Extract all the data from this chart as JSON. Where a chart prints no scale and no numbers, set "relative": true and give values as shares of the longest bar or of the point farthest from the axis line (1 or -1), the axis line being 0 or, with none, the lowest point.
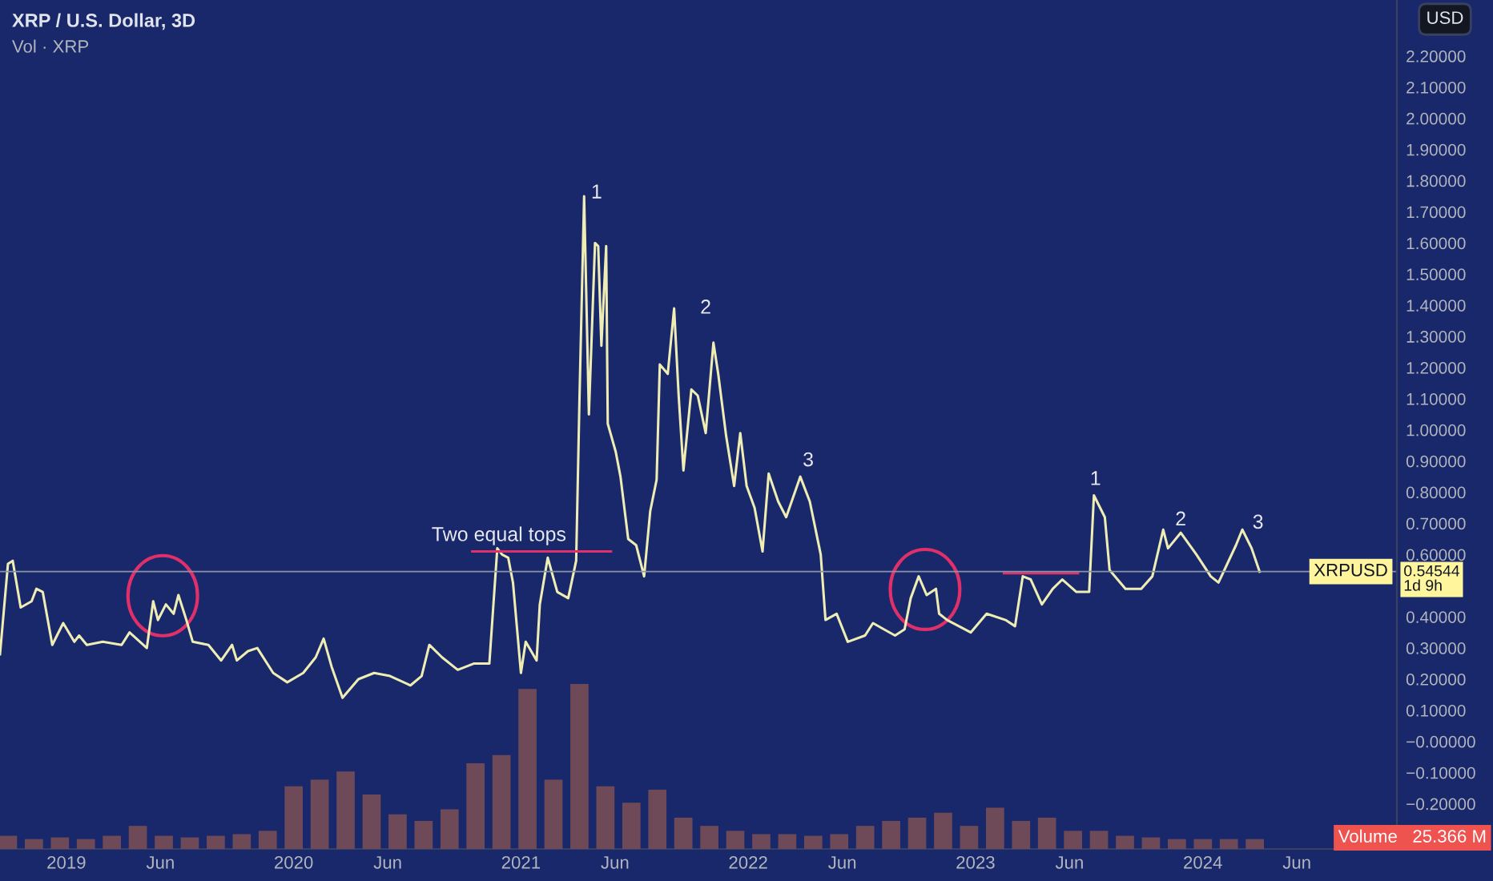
{
  "chart_data": [
    {
      "type": "line",
      "title": "XRP / U.S. Dollar, 3D",
      "subtitle": "Vol · XRP",
      "x": [
        2018.708,
        2018.743,
        2018.764,
        2018.799,
        2018.847,
        2018.868,
        2018.896,
        2018.938,
        2018.986,
        2019.035,
        2019.056,
        2019.09,
        2019.16,
        2019.243,
        2019.278,
        2019.354,
        2019.382,
        2019.403,
        2019.438,
        2019.472,
        2019.493,
        2019.528,
        2019.556,
        2019.625,
        2019.681,
        2019.729,
        2019.75,
        2019.799,
        2019.84,
        2019.91,
        2019.972,
        2020.042,
        2020.097,
        2020.132,
        2020.167,
        2020.215,
        2020.285,
        2020.354,
        2020.424,
        2020.514,
        2020.563,
        2020.597,
        2020.653,
        2020.722,
        2020.792,
        2020.861,
        2020.896,
        2020.917,
        2020.944,
        2020.965,
        2021.0,
        2021.021,
        2021.069,
        2021.083,
        2021.118,
        2021.16,
        2021.208,
        2021.243,
        2021.257,
        2021.278,
        2021.299,
        2021.326,
        2021.34,
        2021.354,
        2021.375,
        2021.382,
        2021.417,
        2021.438,
        2021.472,
        2021.507,
        2021.542,
        2021.569,
        2021.597,
        2021.611,
        2021.646,
        2021.674,
        2021.694,
        2021.715,
        2021.75,
        2021.778,
        2021.813,
        2021.847,
        2021.868,
        2021.903,
        2021.938,
        2021.965,
        2021.993,
        2022.028,
        2022.063,
        2022.09,
        2022.132,
        2022.167,
        2022.229,
        2022.271,
        2022.319,
        2022.34,
        2022.389,
        2022.438,
        2022.514,
        2022.549,
        2022.597,
        2022.646,
        2022.688,
        2022.715,
        2022.75,
        2022.785,
        2022.826,
        2022.84,
        2022.875,
        2022.979,
        2023.049,
        2023.132,
        2023.174,
        2023.208,
        2023.243,
        2023.292,
        2023.34,
        2023.382,
        2023.444,
        2023.5,
        2023.521,
        2023.569,
        2023.59,
        2023.66,
        2023.729,
        2023.778,
        2023.826,
        2023.847,
        2023.903,
        2023.972,
        2024.035,
        2024.069,
        2024.146,
        2024.174,
        2024.215,
        2024.25
      ],
      "series": [
        {
          "type": "line",
          "color": "#efedb4",
          "values": [
            0.28,
            0.57,
            0.58,
            0.43,
            0.45,
            0.49,
            0.48,
            0.31,
            0.38,
            0.32,
            0.34,
            0.31,
            0.32,
            0.31,
            0.35,
            0.3,
            0.45,
            0.39,
            0.44,
            0.41,
            0.47,
            0.39,
            0.32,
            0.31,
            0.26,
            0.31,
            0.26,
            0.29,
            0.3,
            0.22,
            0.19,
            0.22,
            0.27,
            0.33,
            0.24,
            0.14,
            0.2,
            0.22,
            0.21,
            0.18,
            0.21,
            0.31,
            0.27,
            0.23,
            0.25,
            0.25,
            0.62,
            0.6,
            0.59,
            0.51,
            0.22,
            0.32,
            0.26,
            0.44,
            0.59,
            0.48,
            0.46,
            0.58,
            1.08,
            1.75,
            1.05,
            1.6,
            1.59,
            1.27,
            1.59,
            1.02,
            0.93,
            0.85,
            0.65,
            0.63,
            0.53,
            0.74,
            0.84,
            1.21,
            1.18,
            1.39,
            1.11,
            0.87,
            1.13,
            1.11,
            0.99,
            1.28,
            1.18,
            0.98,
            0.82,
            0.99,
            0.82,
            0.75,
            0.61,
            0.86,
            0.77,
            0.72,
            0.85,
            0.77,
            0.6,
            0.39,
            0.41,
            0.32,
            0.34,
            0.38,
            0.36,
            0.34,
            0.36,
            0.46,
            0.53,
            0.47,
            0.49,
            0.41,
            0.39,
            0.35,
            0.41,
            0.39,
            0.37,
            0.53,
            0.52,
            0.44,
            0.49,
            0.52,
            0.48,
            0.48,
            0.79,
            0.72,
            0.55,
            0.49,
            0.49,
            0.53,
            0.68,
            0.62,
            0.67,
            0.6,
            0.53,
            0.51,
            0.63,
            0.68,
            0.62,
            0.545
          ]
        },
        {
          "type": "line",
          "color": "#e0306a",
          "x": [
            2020.786,
            2021.396
          ],
          "values": [
            0.61,
            0.61
          ]
        },
        {
          "type": "line",
          "color": "#e0306a",
          "x": [
            2023.125,
            2023.451
          ],
          "values": [
            0.54,
            0.54
          ]
        }
      ],
      "xlim": [
        2018.708,
        2024.854
      ],
      "xticks": [
        {
          "value": 2019,
          "label": "2019"
        },
        {
          "value": 2019.414,
          "label": "Jun"
        },
        {
          "value": 2020,
          "label": "2020"
        },
        {
          "value": 2020.414,
          "label": "Jun"
        },
        {
          "value": 2021,
          "label": "2021"
        },
        {
          "value": 2021.414,
          "label": "Jun"
        },
        {
          "value": 2022,
          "label": "2022"
        },
        {
          "value": 2022.414,
          "label": "Jun"
        },
        {
          "value": 2023,
          "label": "2023"
        },
        {
          "value": 2023.414,
          "label": "Jun"
        },
        {
          "value": 2024,
          "label": "2024"
        },
        {
          "value": 2024.414,
          "label": "Jun"
        }
      ],
      "ylim": [
        -0.345,
        2.38
      ],
      "yticks": [
        {
          "value": -0.2,
          "label": "−0.20000"
        },
        {
          "value": -0.1,
          "label": "−0.10000"
        },
        {
          "value": 0,
          "label": "−0.00000"
        },
        {
          "value": 0.1,
          "label": "0.10000"
        },
        {
          "value": 0.2,
          "label": "0.20000"
        },
        {
          "value": 0.3,
          "label": "0.30000"
        },
        {
          "value": 0.4,
          "label": "0.40000"
        },
        {
          "value": 0.6,
          "label": "0.60000"
        },
        {
          "value": 0.7,
          "label": "0.70000"
        },
        {
          "value": 0.8,
          "label": "0.80000"
        },
        {
          "value": 0.9,
          "label": "0.90000"
        },
        {
          "value": 1.0,
          "label": "1.00000"
        },
        {
          "value": 1.1,
          "label": "1.10000"
        },
        {
          "value": 1.2,
          "label": "1.20000"
        },
        {
          "value": 1.3,
          "label": "1.30000"
        },
        {
          "value": 1.4,
          "label": "1.40000"
        },
        {
          "value": 1.5,
          "label": "1.50000"
        },
        {
          "value": 1.6,
          "label": "1.60000"
        },
        {
          "value": 1.7,
          "label": "1.70000"
        },
        {
          "value": 1.8,
          "label": "1.80000"
        },
        {
          "value": 1.9,
          "label": "1.90000"
        },
        {
          "value": 2.0,
          "label": "2.00000"
        },
        {
          "value": 2.1,
          "label": "2.10000"
        },
        {
          "value": 2.2,
          "label": "2.20000"
        }
      ],
      "ylabel": "USD",
      "ref_lines": [
        {
          "axis": "y",
          "value": 0.54544,
          "label": "XRPUSD",
          "color": "#8a94a8"
        }
      ],
      "annotations": [
        "Two equal tops",
        "1",
        "2",
        "3",
        "1",
        "2",
        "3",
        {
          "text": "0.54544\n1d 9h",
          "x": 2024.854,
          "y": 0.54544
        }
      ]
    },
    {
      "type": "bar",
      "relative": true,
      "tick_labels": false,
      "color": "#6e4a58",
      "categories": [
        null,
        null,
        null,
        null,
        null,
        null,
        null,
        null,
        null,
        null,
        null,
        null,
        null,
        null,
        null,
        null,
        null,
        null,
        null,
        null,
        null,
        null,
        null,
        null,
        null,
        null,
        null,
        null,
        null,
        null,
        null,
        null,
        null,
        null,
        null,
        null,
        null,
        null,
        null,
        null,
        null,
        null,
        null,
        null,
        null,
        null,
        null,
        null,
        null
      ],
      "values": [
        0.08,
        0.06,
        0.07,
        0.06,
        0.08,
        0.14,
        0.08,
        0.07,
        0.08,
        0.09,
        0.11,
        0.38,
        0.42,
        0.47,
        0.33,
        0.21,
        0.17,
        0.24,
        0.52,
        0.57,
        0.97,
        0.42,
        1.0,
        0.38,
        0.28,
        0.36,
        0.19,
        0.14,
        0.11,
        0.09,
        0.09,
        0.08,
        0.09,
        0.14,
        0.17,
        0.19,
        0.22,
        0.14,
        0.25,
        0.17,
        0.19,
        0.11,
        0.11,
        0.08,
        0.07,
        0.06,
        0.06,
        0.06,
        0.06
      ],
      "annotations": [
        "Volume",
        "25.366 M"
      ]
    }
  ]
}
